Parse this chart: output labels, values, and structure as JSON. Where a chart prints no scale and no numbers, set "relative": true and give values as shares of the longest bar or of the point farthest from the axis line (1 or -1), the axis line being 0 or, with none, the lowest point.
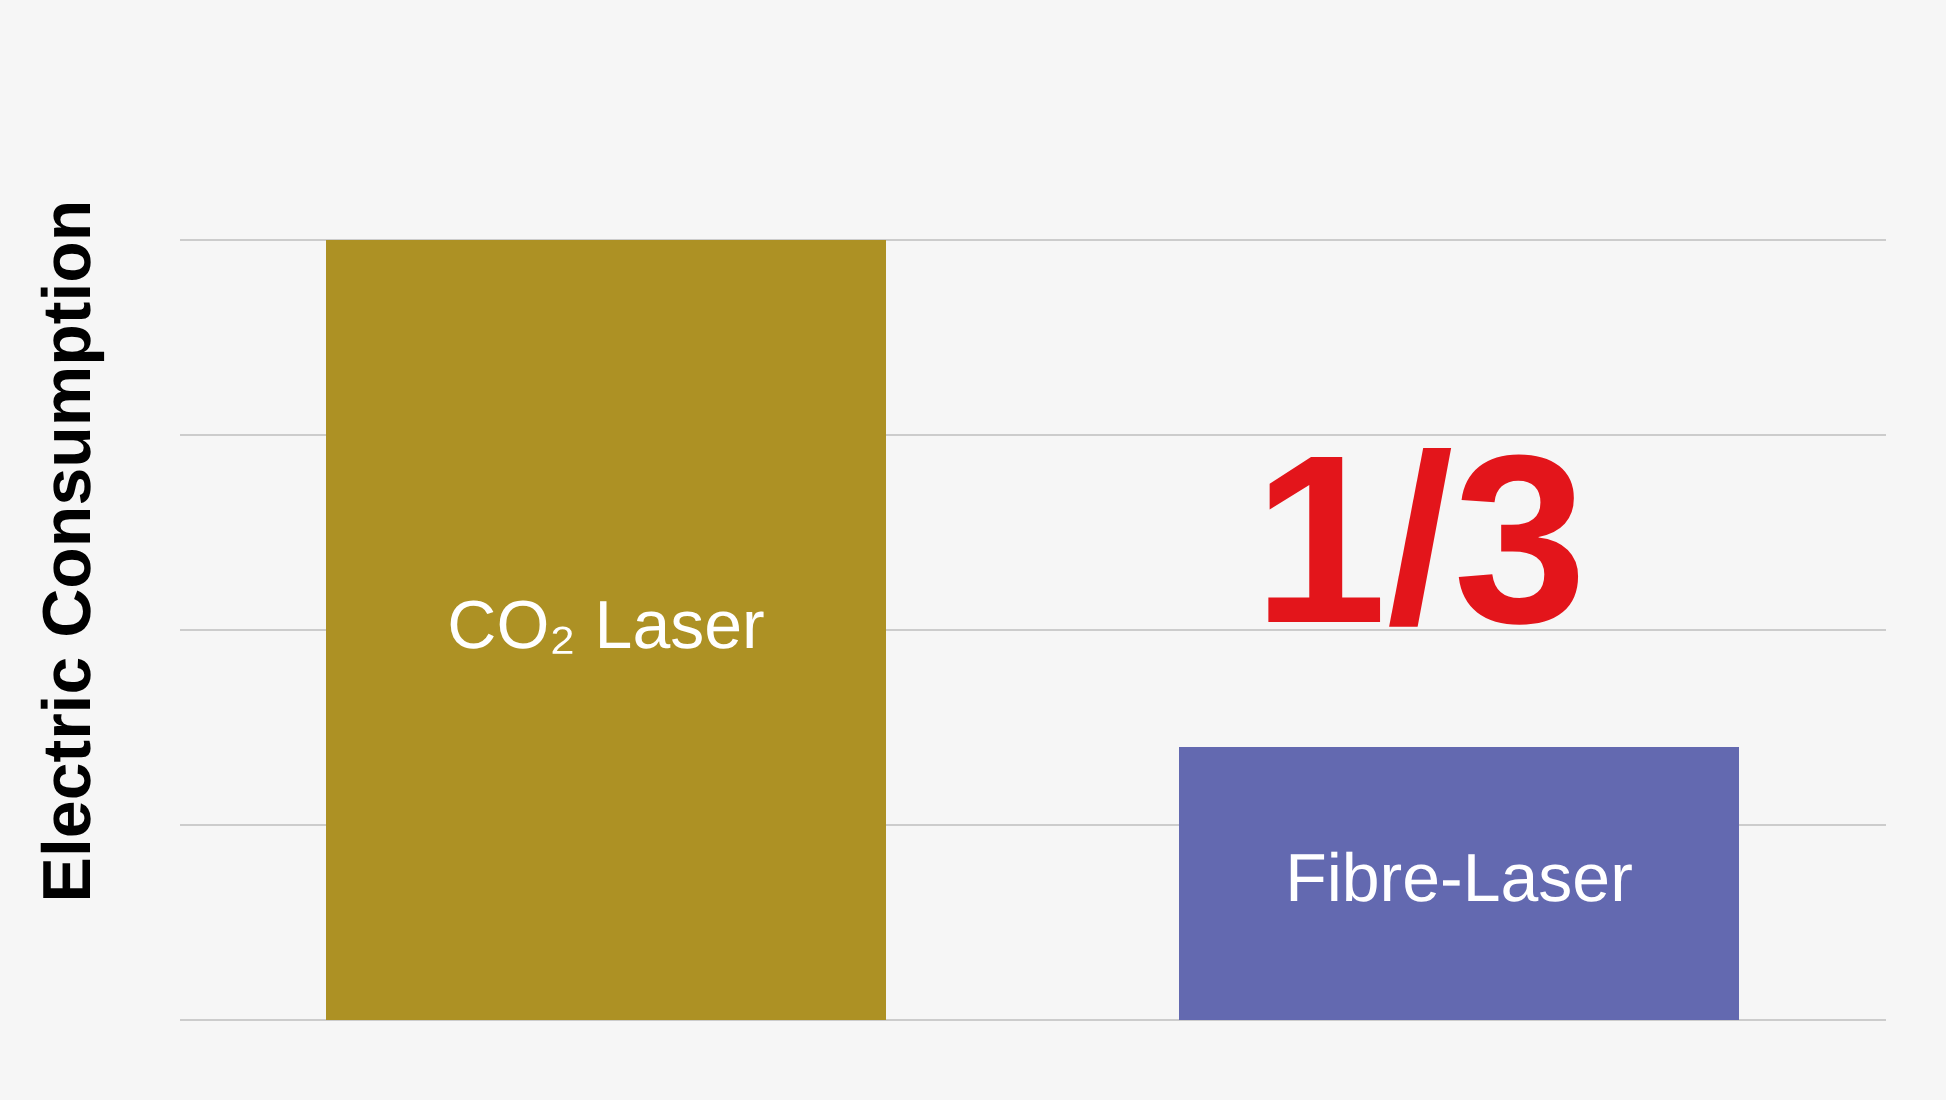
{
  "chart_data": {
    "type": "bar",
    "relative": true,
    "ylabel": "Electric Consumption",
    "categories": [
      "CO₂ Laser",
      "Fibre-Laser"
    ],
    "values": [
      1,
      0.35
    ],
    "colors": [
      "#ad9124",
      "#6369b0"
    ],
    "annotations": [
      "1/3"
    ],
    "grid": "y"
  }
}
